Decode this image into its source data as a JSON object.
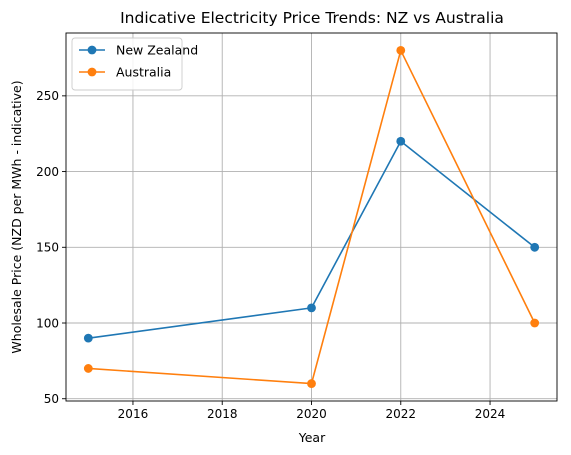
{
  "chart_data": {
    "type": "line",
    "title": "Indicative Electricity Price Trends: NZ vs Australia",
    "xlabel": "Year",
    "ylabel": "Wholesale Price (NZD per MWh - indicative)",
    "x": [
      2015,
      2020,
      2022,
      2025
    ],
    "xlim": [
      2014.5,
      2025.5
    ],
    "ylim": [
      48.5,
      291.5
    ],
    "xticks": [
      2016,
      2018,
      2020,
      2022,
      2024
    ],
    "yticks": [
      50,
      100,
      150,
      200,
      250
    ],
    "grid": true,
    "legend_position": "top-left",
    "series": [
      {
        "name": "New Zealand",
        "color": "#1f77b4",
        "values": [
          90,
          110,
          220,
          150
        ]
      },
      {
        "name": "Australia",
        "color": "#ff7f0e",
        "values": [
          70,
          60,
          280,
          100
        ]
      }
    ]
  }
}
